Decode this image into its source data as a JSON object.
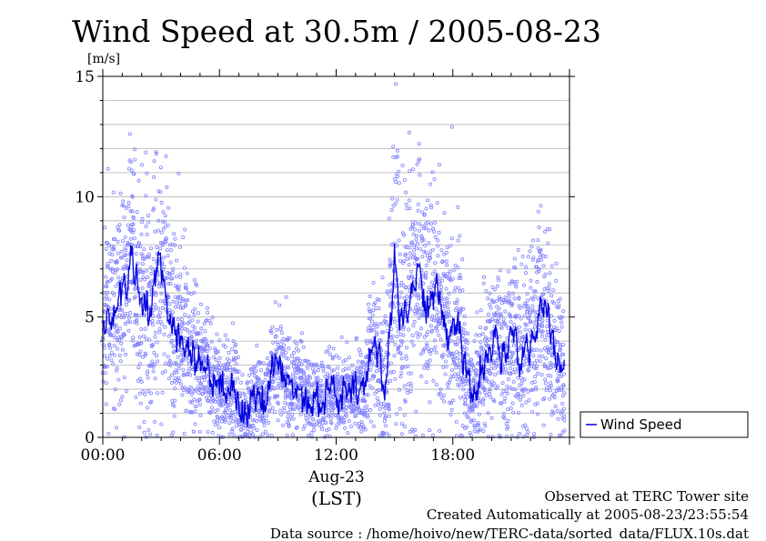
{
  "chart_data": {
    "type": "line",
    "title": "Wind Speed at 30.5m / 2005-08-23",
    "ylabel": "[m/s]",
    "xlabel": "(LST)",
    "x_sublabel": "Aug-23",
    "ylim": [
      0,
      15
    ],
    "xlim": [
      0,
      24
    ],
    "x_unit": "hours",
    "y_ticks": [
      {
        "value": 0,
        "label": "0"
      },
      {
        "value": 5,
        "label": "5"
      },
      {
        "value": 10,
        "label": "10"
      },
      {
        "value": 15,
        "label": "15"
      }
    ],
    "x_ticks": [
      {
        "value": 0,
        "label": "00:00"
      },
      {
        "value": 6,
        "label": "06:00"
      },
      {
        "value": 12,
        "label": "12:00"
      },
      {
        "value": 18,
        "label": "18:00"
      }
    ],
    "grid": true,
    "legend": {
      "position": "outside-right",
      "entries": [
        "Wind Speed"
      ]
    },
    "series": [
      {
        "name": "Wind Speed",
        "style": "line",
        "color": "#0000dd",
        "x": [
          0.0,
          0.25,
          0.5,
          0.75,
          1.0,
          1.25,
          1.5,
          1.75,
          2.0,
          2.25,
          2.5,
          2.75,
          3.0,
          3.25,
          3.5,
          3.75,
          4.0,
          4.25,
          4.5,
          4.75,
          5.0,
          5.25,
          5.5,
          5.75,
          6.0,
          6.25,
          6.5,
          6.75,
          7.0,
          7.25,
          7.5,
          7.75,
          8.0,
          8.25,
          8.5,
          8.75,
          9.0,
          9.25,
          9.5,
          9.75,
          10.0,
          10.25,
          10.5,
          10.75,
          11.0,
          11.25,
          11.5,
          11.75,
          12.0,
          12.25,
          12.5,
          12.75,
          13.0,
          13.25,
          13.5,
          13.75,
          14.0,
          14.25,
          14.5,
          14.75,
          15.0,
          15.25,
          15.5,
          15.75,
          16.0,
          16.25,
          16.5,
          16.75,
          17.0,
          17.25,
          17.5,
          17.75,
          18.0,
          18.25,
          18.5,
          18.75,
          19.0,
          19.25,
          19.5,
          19.75,
          20.0,
          20.25,
          20.5,
          20.75,
          21.0,
          21.25,
          21.5,
          21.75,
          22.0,
          22.25,
          22.5,
          22.75,
          23.0,
          23.25,
          23.5,
          23.75
        ],
        "y": [
          4.0,
          4.9,
          5.0,
          5.8,
          6.1,
          6.5,
          7.8,
          6.3,
          5.5,
          5.8,
          5.2,
          6.6,
          6.9,
          6.3,
          4.6,
          4.3,
          4.0,
          4.1,
          3.7,
          3.2,
          3.1,
          3.0,
          2.7,
          2.5,
          2.2,
          1.8,
          2.0,
          2.4,
          1.5,
          0.8,
          1.1,
          1.7,
          2.0,
          1.5,
          1.9,
          2.8,
          3.3,
          2.6,
          2.2,
          1.9,
          2.4,
          2.1,
          1.6,
          1.3,
          1.9,
          1.4,
          1.7,
          2.2,
          1.7,
          1.5,
          1.9,
          1.6,
          1.8,
          2.2,
          1.7,
          3.8,
          4.1,
          3.5,
          1.5,
          3.9,
          7.8,
          5.0,
          5.3,
          5.9,
          6.1,
          7.2,
          6.0,
          5.3,
          5.7,
          6.0,
          4.8,
          4.3,
          4.6,
          5.0,
          3.5,
          2.5,
          1.4,
          2.1,
          2.9,
          3.1,
          3.5,
          4.2,
          3.0,
          2.9,
          4.5,
          4.0,
          3.3,
          3.5,
          4.0,
          4.4,
          5.8,
          5.2,
          4.2,
          3.5,
          3.1,
          2.6
        ]
      },
      {
        "name": "",
        "style": "scatter",
        "color": "#8080ff",
        "samples_per_hour": 150,
        "spread_by_hour": [
          1.6,
          1.6,
          2.0,
          1.8,
          1.6,
          1.4,
          1.2,
          1.0,
          1.0,
          1.1,
          1.0,
          1.0,
          1.0,
          1.2,
          1.6,
          2.2,
          2.0,
          1.7,
          1.6,
          1.4,
          1.6,
          1.6,
          1.7,
          1.6,
          1.6
        ]
      }
    ]
  },
  "footer": {
    "line1": "Observed at TERC Tower site",
    "line2": "Created Automatically at 2005-08-23/23:55:54",
    "line3": "Data source : /home/hoivo/new/TERC-data/sorted_data/FLUX.10s.dat"
  }
}
